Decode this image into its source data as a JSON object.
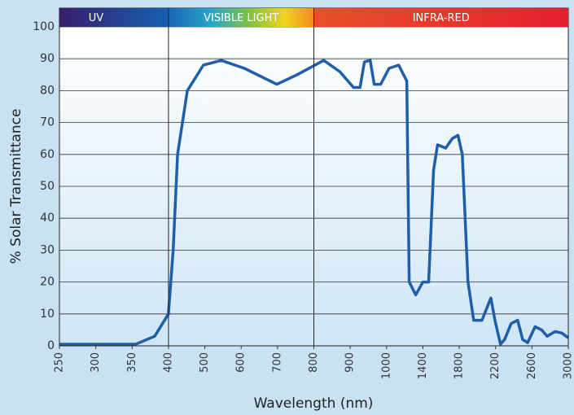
{
  "chart_data": {
    "type": "line",
    "xlabel": "Wavelength (nm)",
    "ylabel": "% Solar Transmittance",
    "regions": [
      {
        "label": "UV",
        "start": 250,
        "end": 400
      },
      {
        "label": "VISIBLE LIGHT",
        "start": 400,
        "end": 800
      },
      {
        "label": "INFRA-RED",
        "start": 800,
        "end": 3000
      }
    ],
    "xlim": [
      250,
      3000
    ],
    "xticks": [
      250,
      300,
      350,
      400,
      500,
      600,
      700,
      800,
      900,
      1000,
      1400,
      1800,
      2200,
      2600,
      3000
    ],
    "ylim": [
      0,
      100
    ],
    "yticks": [
      0,
      10,
      20,
      30,
      40,
      50,
      60,
      70,
      80,
      90,
      100
    ],
    "grid": true,
    "x": [
      250,
      300,
      355,
      381,
      400,
      413,
      425,
      452,
      496,
      545,
      609,
      698,
      754,
      827,
      871,
      909,
      927,
      939,
      955,
      966,
      984,
      1027,
      1134,
      1222,
      1249,
      1321,
      1400,
      1463,
      1517,
      1561,
      1651,
      1723,
      1786,
      1833,
      1896,
      1959,
      2049,
      2148,
      2193,
      2254,
      2299,
      2371,
      2443,
      2497,
      2553,
      2634,
      2706,
      2767,
      2857,
      2928,
      3000
    ],
    "series": [
      {
        "name": "Transmittance",
        "color": "#1f5ea8",
        "values": [
          0.5,
          0.5,
          0.5,
          3,
          10,
          30,
          60,
          80,
          88,
          89.5,
          87,
          82,
          85,
          89.5,
          86,
          81,
          81,
          89,
          89.5,
          82,
          82,
          87,
          88,
          83,
          20,
          16,
          20,
          20,
          55,
          63,
          62,
          65,
          66,
          60,
          20,
          8,
          8,
          15,
          8,
          0.5,
          2,
          7,
          8,
          2,
          1,
          6,
          5,
          3,
          4.5,
          4,
          2.5
        ]
      }
    ]
  }
}
